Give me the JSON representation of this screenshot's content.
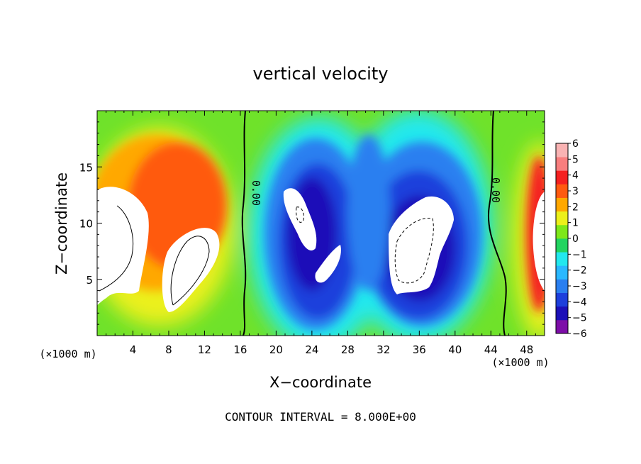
{
  "chart_data": {
    "type": "heatmap",
    "title": "vertical velocity",
    "xlabel": "X−coordinate",
    "ylabel": "Z−coordinate",
    "x_unit_left": "(×1000 m)",
    "x_unit_right": "(×1000 m)",
    "xlim": [
      0,
      50
    ],
    "ylim": [
      0,
      20
    ],
    "x_ticks": [
      4,
      8,
      12,
      16,
      20,
      24,
      28,
      32,
      36,
      40,
      44,
      48
    ],
    "x_tick_labels": [
      "4",
      "8",
      "12",
      "16",
      "20",
      "24",
      "28",
      "32",
      "36",
      "40",
      "44",
      "48"
    ],
    "y_ticks": [
      5,
      10,
      15
    ],
    "y_tick_labels": [
      "5",
      "10",
      "15"
    ],
    "colorbar": {
      "levels": [
        -6,
        -5,
        -4,
        -3,
        -2,
        -1,
        0,
        1,
        2,
        3,
        4,
        5,
        6
      ],
      "labels": [
        "−6",
        "−5",
        "−4",
        "−3",
        "−2",
        "−1",
        "0",
        "1",
        "2",
        "3",
        "4",
        "5",
        "6"
      ],
      "colors": [
        "#7d0ea8",
        "#1c10b8",
        "#1d3fdc",
        "#2a7ff0",
        "#2ab8ff",
        "#22e8ee",
        "#22d460",
        "#7ee81a",
        "#ecf01a",
        "#ffa800",
        "#ff5a10",
        "#f42020",
        "#f87e7e",
        "#f9b3b3"
      ]
    },
    "zero_contour_labels": [
      "0.00",
      "0.00"
    ],
    "regions": [
      {
        "type": "updraft",
        "x": 7,
        "z": 8,
        "value": 6
      },
      {
        "type": "updraft",
        "x": 49.5,
        "z": 10,
        "value": 6
      },
      {
        "type": "downdraft",
        "x": 22,
        "z": 10,
        "value": -6
      },
      {
        "type": "downdraft",
        "x": 36,
        "z": 7.5,
        "value": -6
      }
    ],
    "footer": "CONTOUR INTERVAL = 8.000E+00"
  }
}
